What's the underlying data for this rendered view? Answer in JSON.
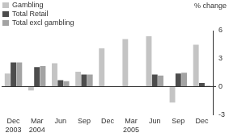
{
  "chart_data": {
    "type": "bar",
    "y_label": "% change",
    "categories": [
      "Dec 2003",
      "Mar 2004",
      "Jun",
      "Sep",
      "Dec",
      "Mar 2005",
      "Jun",
      "Sep",
      "Dec"
    ],
    "series": [
      {
        "name": "Gambling",
        "color": "#c4c4c4",
        "values": [
          1.4,
          -0.4,
          2.5,
          1.6,
          4.1,
          5.1,
          5.4,
          -1.7,
          4.5
        ]
      },
      {
        "name": "Total Retail",
        "color": "#4d4d4d",
        "values": [
          2.6,
          2.1,
          0.7,
          1.3,
          0,
          0,
          1.3,
          1.4,
          0.4
        ]
      },
      {
        "name": "Total excl gambling",
        "color": "#a3a3a3",
        "values": [
          2.6,
          2.2,
          0.6,
          1.3,
          0,
          0,
          1.2,
          1.5,
          0.1
        ]
      }
    ],
    "ylim": [
      -3,
      6
    ],
    "yticks": [
      -3,
      0,
      3,
      6
    ],
    "grid": false,
    "legend": "top-left"
  }
}
